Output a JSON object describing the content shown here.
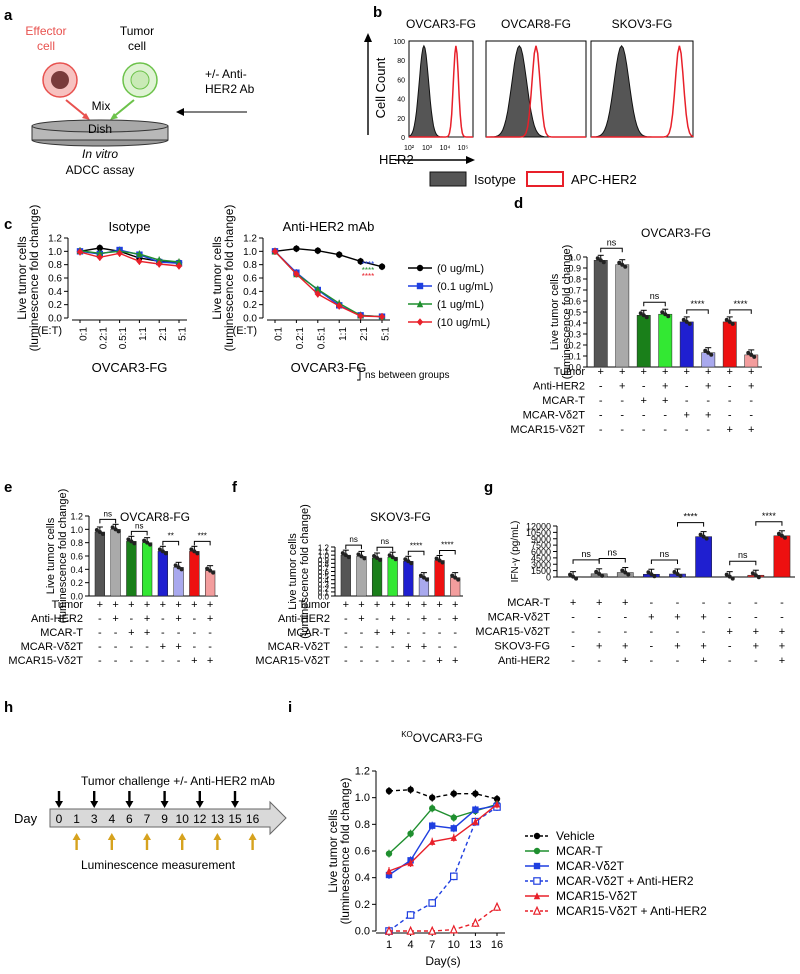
{
  "panel_letters": [
    "a",
    "b",
    "c",
    "d",
    "e",
    "f",
    "g",
    "h",
    "i"
  ],
  "a": {
    "effector": [
      "Effector",
      "cell"
    ],
    "tumor": [
      "Tumor",
      "cell"
    ],
    "ab": [
      "+/- Anti-",
      "HER2 Ab"
    ],
    "mix": "Mix",
    "dish": "Dish",
    "invitro": "In vitro",
    "assay": "ADCC assay",
    "colors": {
      "effector": "#e8524f",
      "tumor": "#6cc24a"
    }
  },
  "b": {
    "titles": [
      "OVCAR3-FG",
      "OVCAR8-FG",
      "SKOV3-FG"
    ],
    "ylabel": "Cell Count",
    "xlabel": "HER2",
    "yticks": [
      "0",
      "20",
      "40",
      "60",
      "80",
      "100"
    ],
    "xticks": [
      "10²",
      "10³",
      "10⁴",
      "10⁵"
    ],
    "legend": [
      "Isotype",
      "APC-HER2"
    ]
  },
  "c": {
    "titles": [
      "Isotype",
      "Anti-HER2 mAb"
    ],
    "ylabel": [
      "Live tumor cells",
      "(luminescence fold change)"
    ],
    "yticks": [
      "0.0",
      "0.2",
      "0.4",
      "0.6",
      "0.8",
      "1.0",
      "1.2"
    ],
    "xticks": [
      "0:1",
      "0.2:1",
      "0.5:1",
      "1:1",
      "2:1",
      "5:1"
    ],
    "xunit": "(E:T)",
    "xlabel": "OVCAR3-FG",
    "ns_note": "ns between groups",
    "stars": "****",
    "series": [
      {
        "name": "(0 ug/mL)",
        "color": "#000000",
        "marker": "circle"
      },
      {
        "name": "(0.1 ug/mL)",
        "color": "#1f3fe0",
        "marker": "square"
      },
      {
        "name": "(1 ug/mL)",
        "color": "#1f8f2f",
        "marker": "triangle"
      },
      {
        "name": "(10 ug/mL)",
        "color": "#e8202a",
        "marker": "diamond"
      }
    ]
  },
  "bar_rows": [
    "Tumor",
    "Anti-HER2",
    "MCAR-T",
    "MCAR-Vδ2T",
    "MCAR15-Vδ2T"
  ],
  "bar_signs": [
    [
      "+",
      "+",
      "+",
      "+",
      "+",
      "+",
      "+",
      "+"
    ],
    [
      "-",
      "+",
      "-",
      "+",
      "-",
      "+",
      "-",
      "+"
    ],
    [
      "-",
      "-",
      "+",
      "+",
      "-",
      "-",
      "-",
      "-"
    ],
    [
      "-",
      "-",
      "-",
      "-",
      "+",
      "+",
      "-",
      "-"
    ],
    [
      "-",
      "-",
      "-",
      "-",
      "-",
      "-",
      "+",
      "+"
    ]
  ],
  "d": {
    "title": "OVCAR3-FG",
    "ylabel": [
      "Live tumor cells",
      "(luminescence fold change)"
    ],
    "yticks": [
      "0.0",
      "0.1",
      "0.2",
      "0.3",
      "0.4",
      "0.5",
      "0.6",
      "0.7",
      "0.8",
      "0.9",
      "1.0"
    ],
    "sig": [
      "ns",
      "ns",
      "****",
      "****"
    ]
  },
  "e": {
    "title": "OVCAR8-FG",
    "ylabel": [
      "Live tumor cells",
      "(luminescence fold change)"
    ],
    "yticks": [
      "0.0",
      "0.2",
      "0.4",
      "0.6",
      "0.8",
      "1.0",
      "1.2"
    ],
    "sig": [
      "ns",
      "ns",
      "**",
      "***"
    ]
  },
  "f": {
    "title": "SKOV3-FG",
    "ylabel": [
      "Live tumor cells",
      "(luminescence fold change)"
    ],
    "yticks": [
      "0.0",
      "0.1",
      "0.2",
      "0.3",
      "0.4",
      "0.5",
      "0.6",
      "0.7",
      "0.8",
      "0.9",
      "1.0",
      "1.1",
      "1.2"
    ],
    "sig": [
      "ns",
      "ns",
      "****",
      "****"
    ]
  },
  "g": {
    "ylabel": "IFN-γ (pg/mL)",
    "yticks": [
      "0",
      "1500",
      "3000",
      "4500",
      "6000",
      "7500",
      "9000",
      "10500",
      "12000"
    ],
    "sig": [
      "ns",
      "ns",
      "ns",
      "****",
      "ns",
      "****"
    ],
    "rows": [
      "MCAR-T",
      "MCAR-Vδ2T",
      "MCAR15-Vδ2T",
      "SKOV3-FG",
      "Anti-HER2"
    ],
    "signs": [
      [
        "+",
        "+",
        "+",
        "-",
        "-",
        "-",
        "-",
        "-",
        "-"
      ],
      [
        "-",
        "-",
        "-",
        "+",
        "+",
        "+",
        "-",
        "-",
        "-"
      ],
      [
        "-",
        "-",
        "-",
        "-",
        "-",
        "-",
        "+",
        "+",
        "+"
      ],
      [
        "-",
        "+",
        "+",
        "-",
        "+",
        "+",
        "-",
        "+",
        "+"
      ],
      [
        "-",
        "-",
        "+",
        "-",
        "-",
        "+",
        "-",
        "-",
        "+"
      ]
    ]
  },
  "h": {
    "top": "Tumor challenge +/- Anti-HER2 mAb",
    "day": "Day",
    "days": [
      "0",
      "1",
      "3",
      "4",
      "6",
      "7",
      "9",
      "10",
      "12",
      "13",
      "15",
      "16"
    ],
    "bottom": "Luminescence measurement",
    "colors": {
      "arrow": "#000000",
      "meas": "#d6a21e"
    }
  },
  "i": {
    "title_sup": "KO",
    "title": "OVCAR3-FG",
    "ylabel": [
      "Live tumor cells",
      "(luminescence fold change)"
    ],
    "yticks": [
      "0.0",
      "0.2",
      "0.4",
      "0.6",
      "0.8",
      "1.0",
      "1.2"
    ],
    "xticks": [
      "1",
      "4",
      "7",
      "10",
      "13",
      "16"
    ],
    "xlabel": "Day(s)",
    "legend": [
      "Vehicle",
      "MCAR-T",
      "MCAR-Vδ2T",
      "MCAR-Vδ2T + Anti-HER2",
      "MCAR15-Vδ2T",
      "MCAR15-Vδ2T + Anti-HER2"
    ]
  },
  "chart_data": [
    {
      "type": "area",
      "panel": "b",
      "title": "Flow cytometry histograms",
      "xlabel": "HER2",
      "ylabel": "Cell Count",
      "xscale": "log",
      "xlim": [
        100,
        100000
      ],
      "ylim": [
        0,
        100
      ],
      "peaks_log10": {
        "isotype": [
          2.7,
          3.0,
          2.9
        ],
        "apc_her2": [
          4.2,
          3.5,
          4.6
        ]
      }
    },
    {
      "type": "line",
      "panel": "c-isotype",
      "title": "Isotype",
      "xlabel": "OVCAR3-FG",
      "ylabel": "Live tumor cells (luminescence fold change)",
      "categories": [
        "0:1",
        "0.2:1",
        "0.5:1",
        "1:1",
        "2:1",
        "5:1"
      ],
      "ylim": [
        0,
        1.2
      ],
      "series": [
        {
          "name": "(0 ug/mL)",
          "values": [
            1.0,
            1.05,
            1.0,
            0.9,
            0.85,
            0.83
          ]
        },
        {
          "name": "(0.1 ug/mL)",
          "values": [
            1.0,
            0.96,
            1.02,
            0.95,
            0.84,
            0.82
          ]
        },
        {
          "name": "(1 ug/mL)",
          "values": [
            1.01,
            0.97,
            1.0,
            0.96,
            0.87,
            0.84
          ]
        },
        {
          "name": "(10 ug/mL)",
          "values": [
            0.99,
            0.91,
            0.97,
            0.85,
            0.81,
            0.78
          ]
        }
      ]
    },
    {
      "type": "line",
      "panel": "c-anti",
      "title": "Anti-HER2 mAb",
      "xlabel": "OVCAR3-FG",
      "ylabel": "Live tumor cells (luminescence fold change)",
      "categories": [
        "0:1",
        "0.2:1",
        "0.5:1",
        "1:1",
        "2:1",
        "5:1"
      ],
      "ylim": [
        0,
        1.2
      ],
      "series": [
        {
          "name": "(0 ug/mL)",
          "values": [
            1.0,
            1.04,
            1.01,
            0.95,
            0.85,
            0.77
          ]
        },
        {
          "name": "(0.1 ug/mL)",
          "values": [
            1.0,
            0.68,
            0.42,
            0.19,
            0.04,
            0.02
          ]
        },
        {
          "name": "(1 ug/mL)",
          "values": [
            1.0,
            0.66,
            0.43,
            0.22,
            0.04,
            0.02
          ]
        },
        {
          "name": "(10 ug/mL)",
          "values": [
            1.0,
            0.66,
            0.36,
            0.18,
            0.03,
            0.02
          ]
        }
      ]
    },
    {
      "type": "bar",
      "panel": "d",
      "title": "OVCAR3-FG",
      "ylim": [
        0,
        1.0
      ],
      "values": [
        0.97,
        0.93,
        0.47,
        0.48,
        0.41,
        0.13,
        0.41,
        0.11
      ],
      "colors": [
        "#555555",
        "#aaaaaa",
        "#1a7f1a",
        "#33e833",
        "#1f1fd0",
        "#a9a9ee",
        "#ee1010",
        "#f39d9d"
      ]
    },
    {
      "type": "bar",
      "panel": "e",
      "title": "OVCAR8-FG",
      "ylim": [
        0,
        1.2
      ],
      "values": [
        0.96,
        1.0,
        0.82,
        0.8,
        0.67,
        0.43,
        0.67,
        0.38
      ],
      "colors": [
        "#555555",
        "#aaaaaa",
        "#1a7f1a",
        "#33e833",
        "#1f1fd0",
        "#a9a9ee",
        "#ee1010",
        "#f39d9d"
      ]
    },
    {
      "type": "bar",
      "panel": "f",
      "title": "SKOV3-FG",
      "ylim": [
        0,
        1.2
      ],
      "values": [
        1.0,
        0.97,
        0.93,
        0.95,
        0.85,
        0.45,
        0.87,
        0.45
      ],
      "colors": [
        "#555555",
        "#aaaaaa",
        "#1a7f1a",
        "#33e833",
        "#1f1fd0",
        "#a9a9ee",
        "#ee1010",
        "#f39d9d"
      ]
    },
    {
      "type": "bar",
      "panel": "g",
      "ylabel": "IFN-γ (pg/mL)",
      "ylim": [
        0,
        12000
      ],
      "values": [
        80,
        750,
        1050,
        650,
        700,
        9500,
        80,
        420,
        9700
      ],
      "colors": [
        "#555555",
        "#888888",
        "#999999",
        "#1f1fd0",
        "#3a3ae0",
        "#1f1fd0",
        "#ee1010",
        "#ee3030",
        "#ee1010"
      ]
    },
    {
      "type": "line",
      "panel": "i",
      "title": "KO OVCAR3-FG",
      "xlabel": "Day(s)",
      "ylabel": "Live tumor cells (luminescence fold change)",
      "x": [
        1,
        4,
        7,
        10,
        13,
        16
      ],
      "ylim": [
        0,
        1.2
      ],
      "series": [
        {
          "name": "Vehicle",
          "color": "#000000",
          "dashed": true,
          "marker": "circle",
          "values": [
            1.05,
            1.06,
            1.0,
            1.03,
            1.03,
            0.99
          ]
        },
        {
          "name": "MCAR-T",
          "color": "#1f8f2f",
          "dashed": false,
          "marker": "circle",
          "values": [
            0.58,
            0.73,
            0.92,
            0.85,
            0.9,
            0.95
          ]
        },
        {
          "name": "MCAR-Vδ2T",
          "color": "#1f3fe0",
          "dashed": false,
          "marker": "square",
          "values": [
            0.42,
            0.53,
            0.79,
            0.77,
            0.91,
            0.94
          ]
        },
        {
          "name": "MCAR-Vδ2T + Anti-HER2",
          "color": "#1f3fe0",
          "dashed": true,
          "marker": "square-open",
          "values": [
            0.0,
            0.12,
            0.21,
            0.41,
            0.82,
            0.93
          ]
        },
        {
          "name": "MCAR15-Vδ2T",
          "color": "#e8202a",
          "dashed": false,
          "marker": "triangle",
          "values": [
            0.45,
            0.51,
            0.67,
            0.7,
            0.82,
            0.95
          ]
        },
        {
          "name": "MCAR15-Vδ2T + Anti-HER2",
          "color": "#e8202a",
          "dashed": true,
          "marker": "triangle-open",
          "values": [
            0.0,
            0.0,
            0.0,
            0.01,
            0.06,
            0.18
          ]
        }
      ]
    }
  ]
}
